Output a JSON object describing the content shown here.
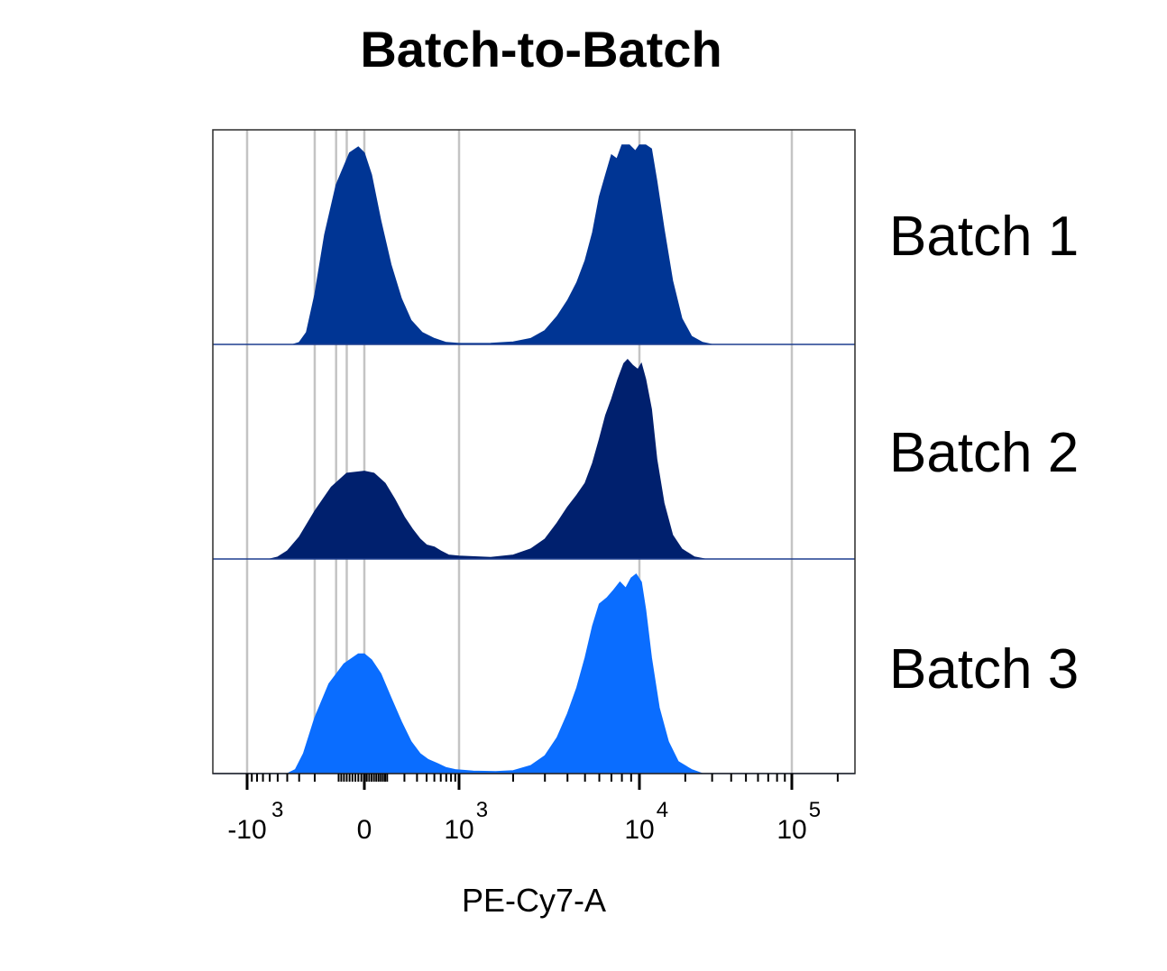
{
  "chart_data": {
    "type": "area",
    "title": "Batch-to-Batch",
    "xlabel": "PE-Cy7-A",
    "x_scale": "biexponential",
    "xlim": [
      -2000,
      200000
    ],
    "grid": true,
    "x_ticks": [
      {
        "value": -1000,
        "base": "-10",
        "exp": "3"
      },
      {
        "value": 0,
        "base": "0",
        "exp": ""
      },
      {
        "value": 1000,
        "base": "10",
        "exp": "3"
      },
      {
        "value": 10000,
        "base": "10",
        "exp": "4"
      },
      {
        "value": 100000,
        "base": "10",
        "exp": "5"
      }
    ],
    "gridlines": [
      -1000,
      -200,
      -100,
      -60,
      0,
      1000,
      10000,
      100000
    ],
    "series": [
      {
        "name": "Batch 1",
        "color": "#003594",
        "points": [
          [
            -350,
            0
          ],
          [
            -300,
            0.01
          ],
          [
            -250,
            0.06
          ],
          [
            -200,
            0.25
          ],
          [
            -150,
            0.55
          ],
          [
            -100,
            0.8
          ],
          [
            -50,
            0.96
          ],
          [
            -20,
            0.99
          ],
          [
            0,
            0.96
          ],
          [
            30,
            0.85
          ],
          [
            70,
            0.62
          ],
          [
            120,
            0.4
          ],
          [
            180,
            0.23
          ],
          [
            250,
            0.12
          ],
          [
            350,
            0.06
          ],
          [
            500,
            0.03
          ],
          [
            700,
            0.01
          ],
          [
            1000,
            0.005
          ],
          [
            1500,
            0.006
          ],
          [
            2000,
            0.012
          ],
          [
            2500,
            0.03
          ],
          [
            3000,
            0.07
          ],
          [
            3500,
            0.14
          ],
          [
            4000,
            0.22
          ],
          [
            4500,
            0.31
          ],
          [
            5000,
            0.42
          ],
          [
            5500,
            0.56
          ],
          [
            6000,
            0.74
          ],
          [
            6500,
            0.85
          ],
          [
            7000,
            0.95
          ],
          [
            7500,
            0.93
          ],
          [
            8000,
            1.0
          ],
          [
            8800,
            1.0
          ],
          [
            9500,
            0.97
          ],
          [
            10000,
            1.0
          ],
          [
            11000,
            1.0
          ],
          [
            12000,
            0.98
          ],
          [
            13000,
            0.82
          ],
          [
            14500,
            0.58
          ],
          [
            16500,
            0.32
          ],
          [
            19000,
            0.13
          ],
          [
            22000,
            0.04
          ],
          [
            26000,
            0.01
          ],
          [
            30000,
            0
          ]
        ]
      },
      {
        "name": "Batch 2",
        "color": "#00206e",
        "points": [
          [
            -600,
            0
          ],
          [
            -500,
            0.01
          ],
          [
            -400,
            0.04
          ],
          [
            -300,
            0.11
          ],
          [
            -200,
            0.24
          ],
          [
            -120,
            0.36
          ],
          [
            -60,
            0.43
          ],
          [
            0,
            0.44
          ],
          [
            40,
            0.43
          ],
          [
            90,
            0.38
          ],
          [
            140,
            0.3
          ],
          [
            200,
            0.21
          ],
          [
            260,
            0.15
          ],
          [
            330,
            0.1
          ],
          [
            400,
            0.07
          ],
          [
            500,
            0.06
          ],
          [
            600,
            0.04
          ],
          [
            750,
            0.02
          ],
          [
            1000,
            0.015
          ],
          [
            1500,
            0.008
          ],
          [
            2000,
            0.02
          ],
          [
            2500,
            0.05
          ],
          [
            3000,
            0.1
          ],
          [
            3500,
            0.18
          ],
          [
            4000,
            0.26
          ],
          [
            4500,
            0.32
          ],
          [
            5000,
            0.38
          ],
          [
            5500,
            0.48
          ],
          [
            6000,
            0.6
          ],
          [
            6500,
            0.72
          ],
          [
            7000,
            0.8
          ],
          [
            7600,
            0.9
          ],
          [
            8200,
            0.98
          ],
          [
            8600,
            1.0
          ],
          [
            9200,
            0.97
          ],
          [
            9800,
            0.95
          ],
          [
            10300,
            0.98
          ],
          [
            11000,
            0.9
          ],
          [
            12000,
            0.75
          ],
          [
            13000,
            0.5
          ],
          [
            14500,
            0.28
          ],
          [
            16500,
            0.12
          ],
          [
            19000,
            0.05
          ],
          [
            23000,
            0.01
          ],
          [
            27000,
            0
          ]
        ]
      },
      {
        "name": "Batch 3",
        "color": "#0a6dff",
        "points": [
          [
            -400,
            0
          ],
          [
            -330,
            0.02
          ],
          [
            -270,
            0.1
          ],
          [
            -200,
            0.28
          ],
          [
            -130,
            0.45
          ],
          [
            -70,
            0.55
          ],
          [
            -20,
            0.6
          ],
          [
            0,
            0.6
          ],
          [
            30,
            0.57
          ],
          [
            70,
            0.5
          ],
          [
            120,
            0.38
          ],
          [
            180,
            0.26
          ],
          [
            250,
            0.16
          ],
          [
            330,
            0.1
          ],
          [
            420,
            0.07
          ],
          [
            550,
            0.05
          ],
          [
            700,
            0.03
          ],
          [
            900,
            0.02
          ],
          [
            1200,
            0.012
          ],
          [
            1600,
            0.01
          ],
          [
            2000,
            0.015
          ],
          [
            2500,
            0.04
          ],
          [
            3000,
            0.09
          ],
          [
            3500,
            0.18
          ],
          [
            4000,
            0.3
          ],
          [
            4500,
            0.43
          ],
          [
            5000,
            0.58
          ],
          [
            5500,
            0.74
          ],
          [
            6000,
            0.85
          ],
          [
            6600,
            0.88
          ],
          [
            7200,
            0.92
          ],
          [
            7800,
            0.96
          ],
          [
            8400,
            0.93
          ],
          [
            9000,
            0.98
          ],
          [
            9600,
            1.0
          ],
          [
            10300,
            0.96
          ],
          [
            11000,
            0.82
          ],
          [
            12000,
            0.58
          ],
          [
            13500,
            0.33
          ],
          [
            15500,
            0.16
          ],
          [
            18000,
            0.06
          ],
          [
            22000,
            0.02
          ],
          [
            26000,
            0
          ]
        ]
      }
    ]
  }
}
